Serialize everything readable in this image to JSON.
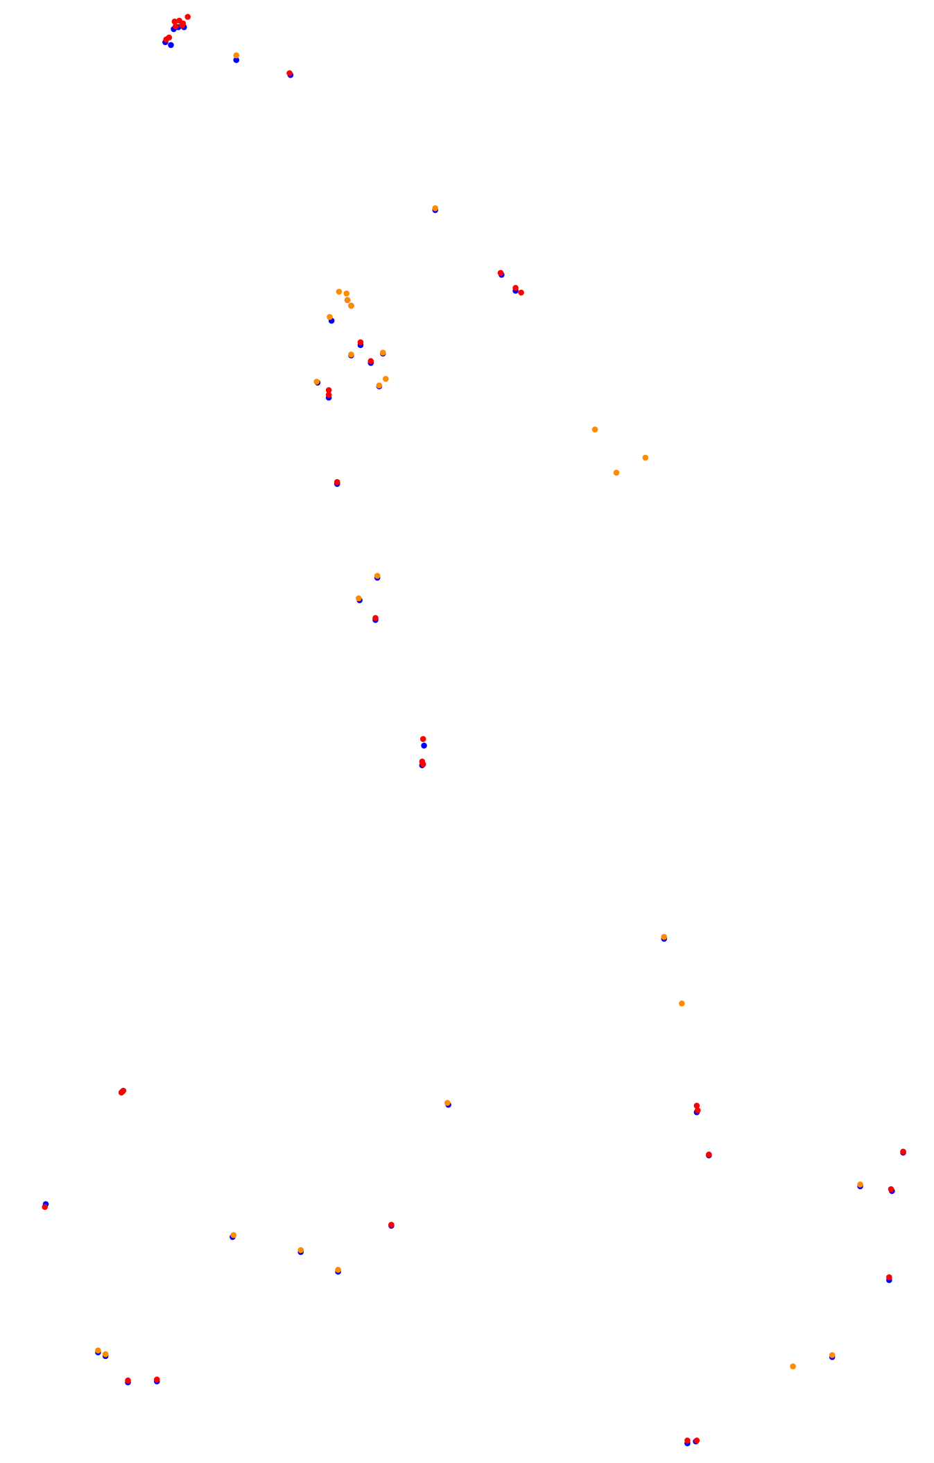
{
  "chart_data": {
    "type": "scatter",
    "title": "",
    "xlabel": "",
    "ylabel": "",
    "grid": false,
    "axes_visible": false,
    "legend": false,
    "x_range": [
      0,
      1000
    ],
    "y_range": [
      0,
      1560
    ],
    "y_direction": "down",
    "series": [
      {
        "color": "#0000ff",
        "points": [
          [
            177,
            45
          ],
          [
            183,
            48
          ],
          [
            186,
            31
          ],
          [
            191,
            29
          ],
          [
            197,
            29
          ],
          [
            253,
            64
          ],
          [
            311,
            80
          ],
          [
            466,
            224
          ],
          [
            537,
            293
          ],
          [
            552,
            310
          ],
          [
            355,
            342
          ],
          [
            372,
            320
          ],
          [
            376,
            326
          ],
          [
            386,
            368
          ],
          [
            397,
            387
          ],
          [
            406,
            412
          ],
          [
            410,
            377
          ],
          [
            376,
            379
          ],
          [
            340,
            408
          ],
          [
            352,
            424
          ],
          [
            361,
            516
          ],
          [
            404,
            616
          ],
          [
            385,
            640
          ],
          [
            402,
            661
          ],
          [
            454,
            795
          ],
          [
            452,
            816
          ],
          [
            711,
            1001
          ],
          [
            480,
            1178
          ],
          [
            746,
            1186
          ],
          [
            759,
            1232
          ],
          [
            131,
            1164
          ],
          [
            49,
            1284
          ],
          [
            249,
            1319
          ],
          [
            322,
            1335
          ],
          [
            362,
            1356
          ],
          [
            419,
            1307
          ],
          [
            921,
            1265
          ],
          [
            955,
            1270
          ],
          [
            967,
            1229
          ],
          [
            952,
            1365
          ],
          [
            105,
            1442
          ],
          [
            113,
            1446
          ],
          [
            137,
            1474
          ],
          [
            168,
            1473
          ],
          [
            891,
            1447
          ],
          [
            736,
            1539
          ],
          [
            745,
            1537
          ]
        ]
      },
      {
        "color": "#ff8c00",
        "points": [
          [
            253,
            59
          ],
          [
            466,
            222
          ],
          [
            363,
            311
          ],
          [
            371,
            313
          ],
          [
            372,
            320
          ],
          [
            376,
            326
          ],
          [
            353,
            338
          ],
          [
            410,
            376
          ],
          [
            376,
            378
          ],
          [
            413,
            404
          ],
          [
            339,
            407
          ],
          [
            406,
            411
          ],
          [
            637,
            458
          ],
          [
            691,
            488
          ],
          [
            660,
            504
          ],
          [
            404,
            614
          ],
          [
            384,
            638
          ],
          [
            711,
            999
          ],
          [
            730,
            1070
          ],
          [
            479,
            1176
          ],
          [
            250,
            1317
          ],
          [
            322,
            1333
          ],
          [
            362,
            1354
          ],
          [
            921,
            1263
          ],
          [
            105,
            1440
          ],
          [
            113,
            1444
          ],
          [
            891,
            1445
          ],
          [
            849,
            1457
          ]
        ]
      },
      {
        "color": "#ff0000",
        "points": [
          [
            201,
            18
          ],
          [
            187,
            23
          ],
          [
            192,
            22
          ],
          [
            196,
            25
          ],
          [
            188,
            28
          ],
          [
            195,
            27
          ],
          [
            181,
            40
          ],
          [
            178,
            42
          ],
          [
            310,
            78
          ],
          [
            536,
            291
          ],
          [
            552,
            307
          ],
          [
            558,
            312
          ],
          [
            386,
            365
          ],
          [
            397,
            385
          ],
          [
            352,
            416
          ],
          [
            352,
            421
          ],
          [
            361,
            514
          ],
          [
            402,
            659
          ],
          [
            453,
            788
          ],
          [
            452,
            812
          ],
          [
            453,
            815
          ],
          [
            746,
            1179
          ],
          [
            747,
            1184
          ],
          [
            759,
            1231
          ],
          [
            130,
            1165
          ],
          [
            132,
            1163
          ],
          [
            48,
            1287
          ],
          [
            419,
            1306
          ],
          [
            954,
            1268
          ],
          [
            967,
            1228
          ],
          [
            952,
            1362
          ],
          [
            137,
            1472
          ],
          [
            168,
            1471
          ],
          [
            736,
            1536
          ],
          [
            746,
            1536
          ]
        ]
      }
    ]
  }
}
